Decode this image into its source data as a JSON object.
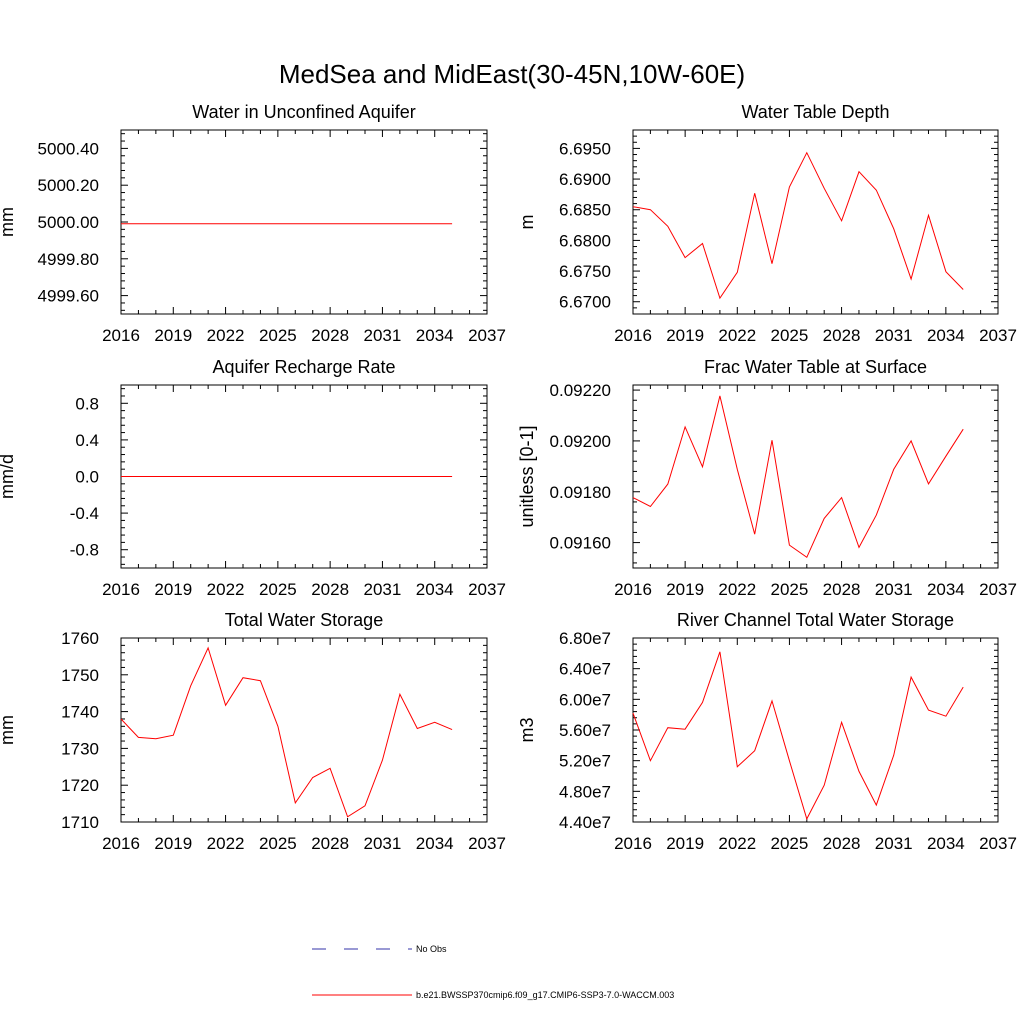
{
  "title": "MedSea and MidEast(30-45N,10W-60E)",
  "legend": {
    "items": [
      {
        "label": "No Obs",
        "color": "#3333aa",
        "dash": true
      },
      {
        "label": "b.e21.BWSSP370cmip6.f09_g17.CMIP6-SSP3-7.0-WACCM.003",
        "color": "#ff0000",
        "dash": false
      }
    ]
  },
  "chart_data": [
    {
      "type": "line",
      "title": "Water in Unconfined Aquifer",
      "ylabel": "mm",
      "xlim": [
        2016,
        2037
      ],
      "ylim": [
        4999.5,
        5000.5
      ],
      "xticks": [
        2016,
        2019,
        2022,
        2025,
        2028,
        2031,
        2034,
        2037
      ],
      "yticks": [
        4999.6,
        4999.8,
        5000.0,
        5000.2,
        5000.4
      ],
      "ytick_labels": [
        "4999.60",
        "4999.80",
        "5000.00",
        "5000.20",
        "5000.40"
      ],
      "series": [
        {
          "color": "#ff0000",
          "x": [
            2016,
            2017,
            2018,
            2019,
            2020,
            2021,
            2022,
            2023,
            2024,
            2025,
            2026,
            2027,
            2028,
            2029,
            2030,
            2031,
            2032,
            2033,
            2034,
            2035
          ],
          "y": [
            4999.99,
            4999.99,
            4999.99,
            4999.99,
            4999.99,
            4999.99,
            4999.99,
            4999.99,
            4999.99,
            4999.99,
            4999.99,
            4999.99,
            4999.99,
            4999.99,
            4999.99,
            4999.99,
            4999.99,
            4999.99,
            4999.99,
            4999.99
          ]
        }
      ]
    },
    {
      "type": "line",
      "title": "Water Table Depth",
      "ylabel": "m",
      "xlim": [
        2016,
        2037
      ],
      "ylim": [
        6.668,
        6.698
      ],
      "xticks": [
        2016,
        2019,
        2022,
        2025,
        2028,
        2031,
        2034,
        2037
      ],
      "yticks": [
        6.67,
        6.675,
        6.68,
        6.685,
        6.69,
        6.695
      ],
      "ytick_labels": [
        "6.6700",
        "6.6750",
        "6.6800",
        "6.6850",
        "6.6900",
        "6.6950"
      ],
      "series": [
        {
          "color": "#ff0000",
          "x": [
            2016,
            2017,
            2018,
            2019,
            2020,
            2021,
            2022,
            2023,
            2024,
            2025,
            2026,
            2027,
            2028,
            2029,
            2030,
            2031,
            2032,
            2033,
            2034,
            2035
          ],
          "y": [
            6.6855,
            6.685,
            6.6823,
            6.6772,
            6.6795,
            6.6706,
            6.6748,
            6.6877,
            6.6762,
            6.6887,
            6.6943,
            6.6885,
            6.6832,
            6.6912,
            6.6882,
            6.6819,
            6.6737,
            6.6841,
            6.6749,
            6.672
          ]
        }
      ]
    },
    {
      "type": "line",
      "title": "Aquifer Recharge Rate",
      "ylabel": "mm/d",
      "xlim": [
        2016,
        2037
      ],
      "ylim": [
        -1.0,
        1.0
      ],
      "xticks": [
        2016,
        2019,
        2022,
        2025,
        2028,
        2031,
        2034,
        2037
      ],
      "yticks": [
        -0.8,
        -0.4,
        0.0,
        0.4,
        0.8
      ],
      "ytick_labels": [
        "-0.8",
        "-0.4",
        "0.0",
        "0.4",
        "0.8"
      ],
      "series": [
        {
          "color": "#ff0000",
          "x": [
            2016,
            2017,
            2018,
            2019,
            2020,
            2021,
            2022,
            2023,
            2024,
            2025,
            2026,
            2027,
            2028,
            2029,
            2030,
            2031,
            2032,
            2033,
            2034,
            2035
          ],
          "y": [
            0,
            0,
            0,
            0,
            0,
            0,
            0,
            0,
            0,
            0,
            0,
            0,
            0,
            0,
            0,
            0,
            0,
            0,
            0,
            0
          ]
        }
      ]
    },
    {
      "type": "line",
      "title": "Frac Water Table at Surface",
      "ylabel": "unitless [0-1]",
      "xlim": [
        2016,
        2037
      ],
      "ylim": [
        0.0915,
        0.09222
      ],
      "xticks": [
        2016,
        2019,
        2022,
        2025,
        2028,
        2031,
        2034,
        2037
      ],
      "yticks": [
        0.0916,
        0.0918,
        0.092,
        0.0922
      ],
      "ytick_labels": [
        "0.09160",
        "0.09180",
        "0.09200",
        "0.09220"
      ],
      "series": [
        {
          "color": "#ff0000",
          "x": [
            2016,
            2017,
            2018,
            2019,
            2020,
            2021,
            2022,
            2023,
            2024,
            2025,
            2026,
            2027,
            2028,
            2029,
            2030,
            2031,
            2032,
            2033,
            2034,
            2035
          ],
          "y": [
            0.091777,
            0.091742,
            0.09183,
            0.092055,
            0.091898,
            0.092177,
            0.091888,
            0.091633,
            0.092003,
            0.09159,
            0.091542,
            0.091695,
            0.091777,
            0.091581,
            0.091708,
            0.091888,
            0.092,
            0.091831,
            0.09194,
            0.092046
          ]
        }
      ]
    },
    {
      "type": "line",
      "title": "Total Water Storage",
      "ylabel": "mm",
      "xlim": [
        2016,
        2037
      ],
      "ylim": [
        1710,
        1760
      ],
      "xticks": [
        2016,
        2019,
        2022,
        2025,
        2028,
        2031,
        2034,
        2037
      ],
      "yticks": [
        1710,
        1720,
        1730,
        1740,
        1750,
        1760
      ],
      "ytick_labels": [
        "1710",
        "1720",
        "1730",
        "1740",
        "1750",
        "1760"
      ],
      "series": [
        {
          "color": "#ff0000",
          "x": [
            2016,
            2017,
            2018,
            2019,
            2020,
            2021,
            2022,
            2023,
            2024,
            2025,
            2026,
            2027,
            2028,
            2029,
            2030,
            2031,
            2032,
            2033,
            2034,
            2035
          ],
          "y": [
            1738.0,
            1733.0,
            1732.6,
            1733.6,
            1747.0,
            1757.3,
            1741.7,
            1749.2,
            1748.4,
            1736.0,
            1715.2,
            1722.1,
            1724.6,
            1711.4,
            1714.4,
            1726.8,
            1744.7,
            1735.4,
            1737.1,
            1735.1
          ]
        }
      ]
    },
    {
      "type": "line",
      "title": "River Channel Total Water Storage",
      "ylabel": "m3",
      "xlim": [
        2016,
        2037
      ],
      "ylim": [
        44000000.0,
        68000000.0
      ],
      "xticks": [
        2016,
        2019,
        2022,
        2025,
        2028,
        2031,
        2034,
        2037
      ],
      "yticks": [
        44000000.0,
        48000000.0,
        52000000.0,
        56000000.0,
        60000000.0,
        64000000.0,
        68000000.0
      ],
      "ytick_labels": [
        "4.40e7",
        "4.80e7",
        "5.20e7",
        "5.60e7",
        "6.00e7",
        "6.40e7",
        "6.80e7"
      ],
      "series": [
        {
          "color": "#ff0000",
          "x": [
            2016,
            2017,
            2018,
            2019,
            2020,
            2021,
            2022,
            2023,
            2024,
            2025,
            2026,
            2027,
            2028,
            2029,
            2030,
            2031,
            2032,
            2033,
            2034,
            2035
          ],
          "y": [
            58200000.0,
            52000000.0,
            56300000.0,
            56100000.0,
            59600000.0,
            66200000.0,
            51200000.0,
            53300000.0,
            59800000.0,
            52000000.0,
            44400000.0,
            48800000.0,
            57000000.0,
            50600000.0,
            46200000.0,
            52700000.0,
            62900000.0,
            58600000.0,
            57800000.0,
            61600000.0
          ]
        }
      ]
    }
  ]
}
